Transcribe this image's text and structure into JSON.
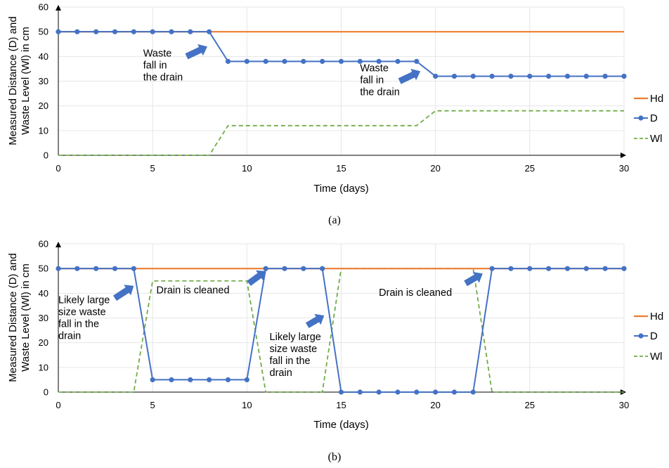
{
  "colors": {
    "hd": "#ED7D31",
    "d": "#4472C4",
    "wl": "#70AD47",
    "grid": "#E6E6E6",
    "arrow": "#4472C4"
  },
  "legend": [
    "Hd",
    "D",
    "Wl"
  ],
  "chart_data": [
    {
      "type": "line",
      "caption": "(a)",
      "xlabel": "Time (days)",
      "ylabel_line1": "Measured Distance (D) and",
      "ylabel_line2": "Waste Level (Wl)  in cm",
      "xlim": [
        0,
        30
      ],
      "ylim": [
        0,
        60
      ],
      "xticks": [
        "0",
        "5",
        "10",
        "15",
        "20",
        "25",
        "30"
      ],
      "yticks": [
        "0",
        "10",
        "20",
        "30",
        "40",
        "50",
        "60"
      ],
      "x": [
        0,
        1,
        2,
        3,
        4,
        5,
        6,
        7,
        8,
        9,
        10,
        11,
        12,
        13,
        14,
        15,
        16,
        17,
        18,
        19,
        20,
        21,
        22,
        23,
        24,
        25,
        26,
        27,
        28,
        29,
        30
      ],
      "series": [
        {
          "name": "Hd",
          "values": [
            50,
            50,
            50,
            50,
            50,
            50,
            50,
            50,
            50,
            50,
            50,
            50,
            50,
            50,
            50,
            50,
            50,
            50,
            50,
            50,
            50,
            50,
            50,
            50,
            50,
            50,
            50,
            50,
            50,
            50,
            50
          ]
        },
        {
          "name": "D",
          "values": [
            50,
            50,
            50,
            50,
            50,
            50,
            50,
            50,
            50,
            38,
            38,
            38,
            38,
            38,
            38,
            38,
            38,
            38,
            38,
            38,
            32,
            32,
            32,
            32,
            32,
            32,
            32,
            32,
            32,
            32,
            32
          ]
        },
        {
          "name": "Wl",
          "values": [
            0,
            0,
            0,
            0,
            0,
            0,
            0,
            0,
            0,
            12,
            12,
            12,
            12,
            12,
            12,
            12,
            12,
            12,
            12,
            12,
            18,
            18,
            18,
            18,
            18,
            18,
            18,
            18,
            18,
            18,
            18
          ]
        }
      ],
      "annotations": [
        {
          "lines": [
            "Waste",
            "fall in",
            "the drain"
          ],
          "x": 4.5,
          "y": 40,
          "arrow_from": [
            6.8,
            40
          ],
          "arrow_to": [
            7.9,
            44
          ]
        },
        {
          "lines": [
            "Waste",
            "fall in",
            "the drain"
          ],
          "x": 16.0,
          "y": 34,
          "arrow_from": [
            18.1,
            30
          ],
          "arrow_to": [
            19.2,
            34
          ]
        }
      ]
    },
    {
      "type": "line",
      "caption": "(b)",
      "xlabel": "Time (days)",
      "ylabel_line1": "Measured Distance (D) and",
      "ylabel_line2": "Waste Level (Wl)  in cm",
      "xlim": [
        0,
        30
      ],
      "ylim": [
        0,
        60
      ],
      "xticks": [
        "0",
        "5",
        "10",
        "15",
        "20",
        "25",
        "30"
      ],
      "yticks": [
        "0",
        "10",
        "20",
        "30",
        "40",
        "50",
        "60"
      ],
      "x": [
        0,
        1,
        2,
        3,
        4,
        5,
        6,
        7,
        8,
        9,
        10,
        11,
        12,
        13,
        14,
        15,
        16,
        17,
        18,
        19,
        20,
        21,
        22,
        23,
        24,
        25,
        26,
        27,
        28,
        29,
        30
      ],
      "series": [
        {
          "name": "Hd",
          "values": [
            50,
            50,
            50,
            50,
            50,
            50,
            50,
            50,
            50,
            50,
            50,
            50,
            50,
            50,
            50,
            50,
            50,
            50,
            50,
            50,
            50,
            50,
            50,
            50,
            50,
            50,
            50,
            50,
            50,
            50,
            50
          ]
        },
        {
          "name": "D",
          "values": [
            50,
            50,
            50,
            50,
            50,
            5,
            5,
            5,
            5,
            5,
            5,
            50,
            50,
            50,
            50,
            0,
            0,
            0,
            0,
            0,
            0,
            0,
            0,
            50,
            50,
            50,
            50,
            50,
            50,
            50,
            50
          ]
        },
        {
          "name": "Wl",
          "values": [
            0,
            0,
            0,
            0,
            0,
            45,
            45,
            45,
            45,
            45,
            45,
            0,
            0,
            0,
            0,
            50,
            50,
            50,
            50,
            50,
            50,
            50,
            50,
            0,
            0,
            0,
            0,
            0,
            0,
            0,
            0
          ]
        }
      ],
      "annotations": [
        {
          "lines": [
            "Likely large",
            "size waste",
            "fall in the",
            "drain"
          ],
          "x": 0.0,
          "y": 36,
          "arrow_from": [
            3.0,
            38
          ],
          "arrow_to": [
            4.0,
            43
          ]
        },
        {
          "lines": [
            "Drain is cleaned"
          ],
          "x": 5.2,
          "y": 40,
          "arrow_from": [
            10.1,
            44
          ],
          "arrow_to": [
            11.0,
            49
          ]
        },
        {
          "lines": [
            "Likely large",
            "size waste",
            "fall in the",
            "drain"
          ],
          "x": 11.2,
          "y": 21,
          "arrow_from": [
            13.2,
            27
          ],
          "arrow_to": [
            14.1,
            31
          ]
        },
        {
          "lines": [
            "Drain is cleaned"
          ],
          "x": 17.0,
          "y": 39,
          "arrow_from": [
            21.6,
            44
          ],
          "arrow_to": [
            22.5,
            48
          ]
        }
      ]
    }
  ]
}
